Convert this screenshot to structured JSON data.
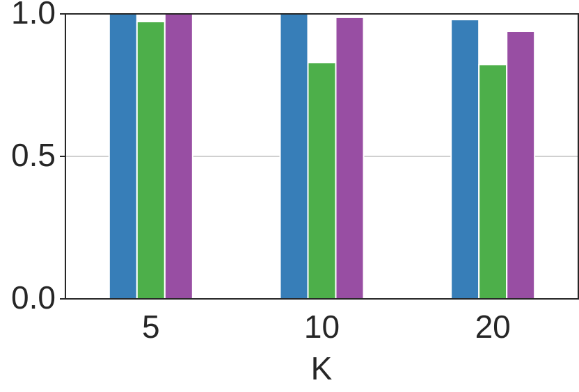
{
  "chart_data": {
    "type": "bar",
    "xlabel": "K",
    "categories": [
      "5",
      "10",
      "20"
    ],
    "series": [
      {
        "color": "#377eb8",
        "values": [
          1.0,
          1.0,
          0.98
        ]
      },
      {
        "color": "#4daf4a",
        "values": [
          0.973,
          0.829,
          0.822
        ]
      },
      {
        "color": "#984ea3",
        "values": [
          1.0,
          0.988,
          0.939
        ]
      }
    ],
    "ylim": [
      0,
      1
    ],
    "yticks": [
      {
        "value": 0,
        "label": "0.0"
      },
      0.5,
      {
        "value": 1,
        "label": "1.0"
      }
    ],
    "grid": true
  }
}
